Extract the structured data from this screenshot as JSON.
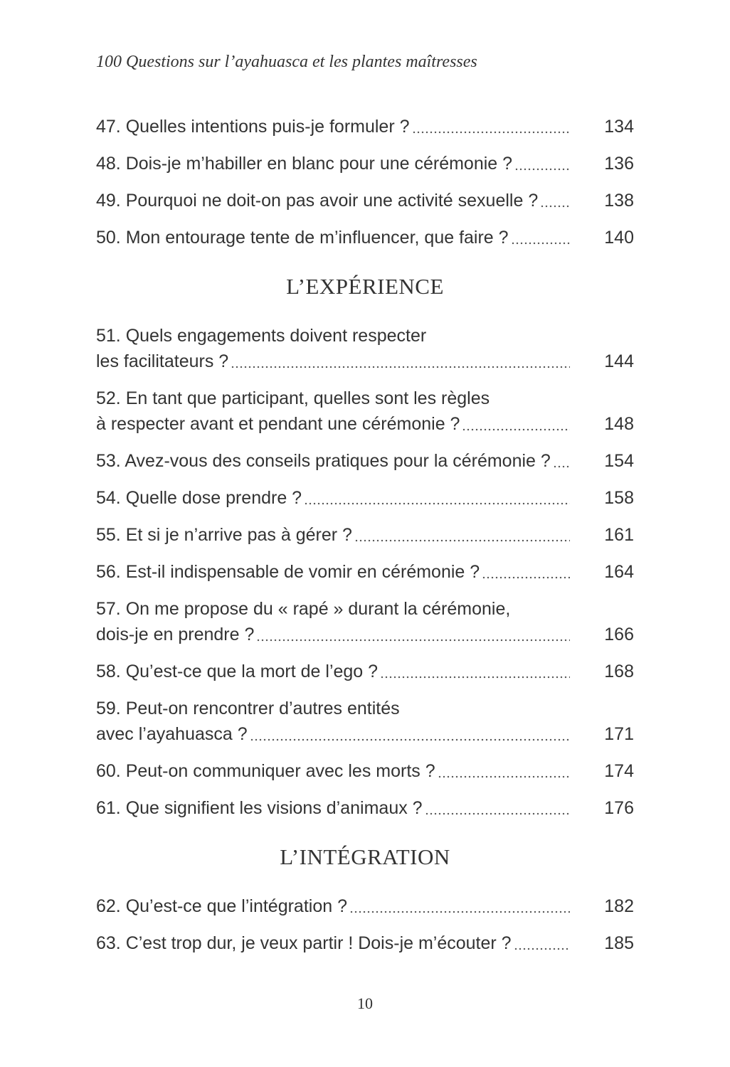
{
  "header": "100 Questions sur l’ayahuasca et les plantes maîtresses",
  "groups": [
    {
      "section": "",
      "entries": [
        {
          "lines": [
            "47. Quelles intentions puis-je formuler ?"
          ],
          "page": "134"
        },
        {
          "lines": [
            "48. Dois-je m’habiller en blanc pour une cérémonie ?"
          ],
          "page": "136"
        },
        {
          "lines": [
            "49. Pourquoi ne doit-on pas avoir une activité sexuelle ?"
          ],
          "page": "138"
        },
        {
          "lines": [
            "50. Mon entourage tente de m’influencer, que faire ?"
          ],
          "page": "140"
        }
      ]
    },
    {
      "section": "L’EXPÉRIENCE",
      "entries": [
        {
          "lines": [
            "51. Quels engagements doivent respecter",
            "les facilitateurs ?"
          ],
          "page": "144"
        },
        {
          "lines": [
            "52. En tant que participant, quelles sont les règles",
            "à respecter avant et pendant une cérémonie ?"
          ],
          "page": "148"
        },
        {
          "lines": [
            "53. Avez-vous des conseils pratiques pour la cérémonie ?"
          ],
          "page": "154"
        },
        {
          "lines": [
            "54. Quelle dose prendre ?"
          ],
          "page": "158"
        },
        {
          "lines": [
            "55. Et si je n’arrive pas à gérer ?"
          ],
          "page": "161"
        },
        {
          "lines": [
            "56. Est-il indispensable de vomir en cérémonie ?"
          ],
          "page": "164"
        },
        {
          "lines": [
            "57. On me propose du « rapé » durant la cérémonie,",
            "dois-je en prendre ?"
          ],
          "page": "166"
        },
        {
          "lines": [
            "58. Qu’est-ce que la mort de l’ego ?"
          ],
          "page": "168"
        },
        {
          "lines": [
            "59. Peut-on rencontrer d’autres entités",
            "avec l’ayahuasca ?"
          ],
          "page": "171"
        },
        {
          "lines": [
            "60. Peut-on communiquer avec les morts ?"
          ],
          "page": "174"
        },
        {
          "lines": [
            "61. Que signifient les visions d’animaux ?"
          ],
          "page": "176"
        }
      ]
    },
    {
      "section": "L’INTÉGRATION",
      "entries": [
        {
          "lines": [
            "62. Qu’est-ce que l’intégration ?"
          ],
          "page": "182"
        },
        {
          "lines": [
            "63. C’est trop dur, je veux partir ! Dois-je m’écouter ?"
          ],
          "page": "185"
        }
      ]
    }
  ],
  "page_number": "10"
}
